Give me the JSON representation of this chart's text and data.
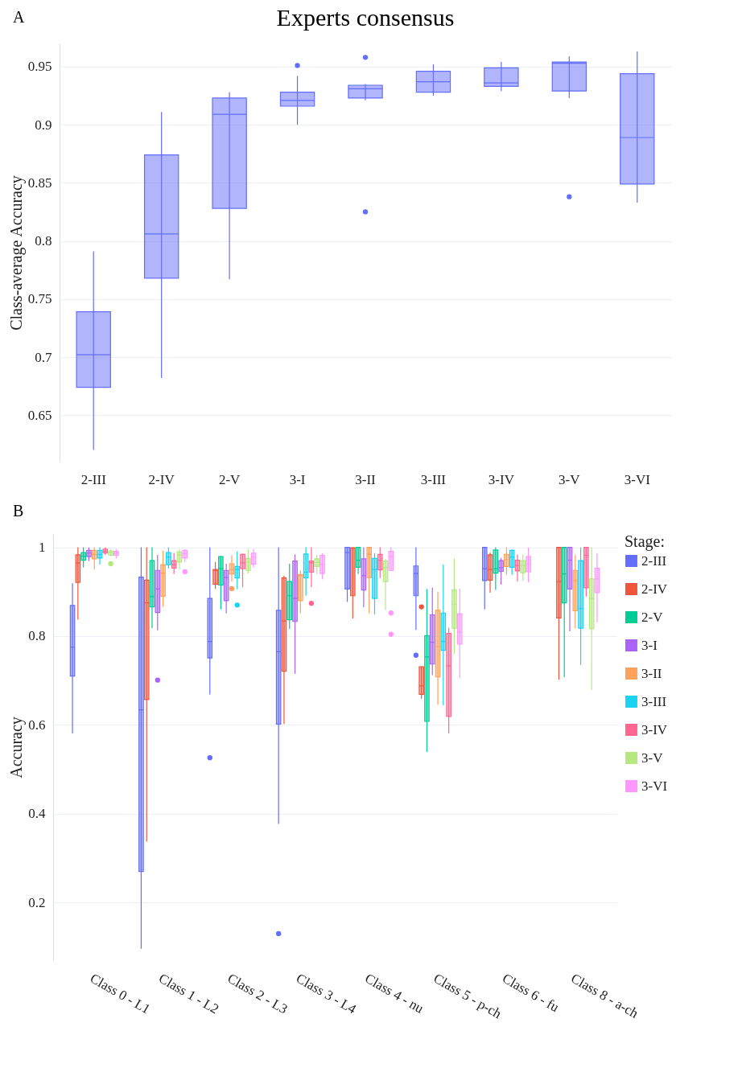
{
  "chart_data": [
    {
      "type": "box",
      "title": "Experts consensus",
      "ylabel": "Class-average Accuracy",
      "annotations": [
        "A"
      ],
      "grid": "y",
      "ylim": [
        0.61,
        0.97
      ],
      "yticks": [
        0.65,
        0.7,
        0.75,
        0.8,
        0.85,
        0.9,
        0.95
      ],
      "categories": [
        "2-III",
        "2-IV",
        "2-V",
        "3-I",
        "3-II",
        "3-III",
        "3-IV",
        "3-V",
        "3-VI"
      ],
      "series": [
        {
          "color": "#636efa",
          "boxes": [
            {
              "low": 0.62,
              "q1": 0.674,
              "median": 0.702,
              "q3": 0.739,
              "high": 0.791
            },
            {
              "low": 0.682,
              "q1": 0.768,
              "median": 0.806,
              "q3": 0.874,
              "high": 0.911
            },
            {
              "low": 0.767,
              "q1": 0.828,
              "median": 0.909,
              "q3": 0.923,
              "high": 0.928
            },
            {
              "low": 0.9,
              "q1": 0.916,
              "median": 0.921,
              "q3": 0.928,
              "high": 0.942,
              "outliers": [
                0.951
              ]
            },
            {
              "low": 0.921,
              "q1": 0.923,
              "median": 0.931,
              "q3": 0.934,
              "high": 0.935,
              "outliers": [
                0.958,
                0.825
              ]
            },
            {
              "low": 0.925,
              "q1": 0.928,
              "median": 0.937,
              "q3": 0.946,
              "high": 0.952
            },
            {
              "low": 0.929,
              "q1": 0.933,
              "median": 0.936,
              "q3": 0.949,
              "high": 0.954
            },
            {
              "low": 0.923,
              "q1": 0.929,
              "median": 0.953,
              "q3": 0.954,
              "high": 0.959,
              "outliers": [
                0.838
              ]
            },
            {
              "low": 0.833,
              "q1": 0.849,
              "median": 0.889,
              "q3": 0.944,
              "high": 0.963
            }
          ]
        }
      ]
    },
    {
      "type": "box",
      "ylabel": "Accuracy",
      "legend_title": "Stage:",
      "legend": "right",
      "annotations": [
        "B"
      ],
      "grid": "y",
      "ylim": [
        0.07,
        1.03
      ],
      "yticks": [
        0.2,
        0.4,
        0.6,
        0.8,
        1
      ],
      "categories": [
        "Class 0 - L1",
        "Class 1 - L2",
        "Class 2 - L3",
        "Class 3 - L4",
        "Class 4 - nu",
        "Class 5 - p-ch",
        "Class 6 - fu",
        "Class 8 - a-ch"
      ],
      "series": [
        {
          "name": "2-III",
          "color": "#636efa",
          "boxes": [
            {
              "low": 0.581,
              "q1": 0.71,
              "median": 0.775,
              "q3": 0.869,
              "high": 0.919
            },
            {
              "low": 0.096,
              "q1": 0.27,
              "median": 0.634,
              "q3": 0.933,
              "high": 1
            },
            {
              "low": 0.668,
              "q1": 0.751,
              "median": 0.788,
              "q3": 0.885,
              "high": 1,
              "outliers": [
                0.526
              ]
            },
            {
              "low": 0.377,
              "q1": 0.602,
              "median": 0.765,
              "q3": 0.858,
              "high": 1,
              "outliers": [
                0.13
              ]
            },
            {
              "low": 0.877,
              "q1": 0.906,
              "median": 0.988,
              "q3": 1,
              "high": 1
            },
            {
              "low": 0.814,
              "q1": 0.891,
              "median": 0.941,
              "q3": 0.958,
              "high": 1,
              "outliers": [
                0.757
              ]
            },
            {
              "low": 0.86,
              "q1": 0.925,
              "median": 0.952,
              "q3": 1,
              "high": 1
            },
            null
          ]
        },
        {
          "name": "2-IV",
          "color": "#ef553b",
          "boxes": [
            {
              "low": 0.837,
              "q1": 0.921,
              "median": 0.965,
              "q3": 0.983,
              "high": 1
            },
            {
              "low": 0.337,
              "q1": 0.657,
              "median": 0.875,
              "q3": 0.926,
              "high": 1
            },
            {
              "low": 0.906,
              "q1": 0.917,
              "median": 0.948,
              "q3": 0.95,
              "high": 0.967
            },
            {
              "low": 0.602,
              "q1": 0.721,
              "median": 0.834,
              "q3": 0.931,
              "high": 0.936
            },
            {
              "low": 0.84,
              "q1": 0.891,
              "median": 0.998,
              "q3": 0.999,
              "high": 1
            },
            {
              "low": 0.659,
              "q1": 0.669,
              "median": 0.688,
              "q3": 0.731,
              "high": 0.732,
              "outliers": [
                0.866
              ]
            },
            {
              "low": 0.898,
              "q1": 0.926,
              "median": 0.95,
              "q3": 0.983,
              "high": 0.988
            },
            {
              "low": 0.702,
              "q1": 0.841,
              "median": 0.923,
              "q3": 1,
              "high": 1
            }
          ]
        },
        {
          "name": "2-V",
          "color": "#00cc96",
          "boxes": [
            {
              "low": 0.955,
              "q1": 0.971,
              "median": 0.98,
              "q3": 0.988,
              "high": 1
            },
            {
              "low": 0.818,
              "q1": 0.866,
              "median": 0.889,
              "q3": 0.97,
              "high": 1
            },
            {
              "low": 0.86,
              "q1": 0.915,
              "median": 0.952,
              "q3": 0.979,
              "high": 0.98
            },
            {
              "low": 0.816,
              "q1": 0.837,
              "median": 0.891,
              "q3": 0.923,
              "high": 0.963
            },
            {
              "low": 0.94,
              "q1": 0.955,
              "median": 0.971,
              "q3": 1,
              "high": 1
            },
            {
              "low": 0.539,
              "q1": 0.608,
              "median": 0.753,
              "q3": 0.801,
              "high": 0.906
            },
            {
              "low": 0.904,
              "q1": 0.942,
              "median": 0.952,
              "q3": 0.994,
              "high": 1
            },
            {
              "low": 0.707,
              "q1": 0.875,
              "median": 0.94,
              "q3": 1,
              "high": 1
            }
          ]
        },
        {
          "name": "3-I",
          "color": "#ab63fa",
          "boxes": [
            {
              "low": 0.969,
              "q1": 0.979,
              "median": 0.987,
              "q3": 0.993,
              "high": 1
            },
            {
              "low": 0.813,
              "q1": 0.853,
              "median": 0.906,
              "q3": 0.948,
              "high": 0.983,
              "outliers": [
                0.701
              ]
            },
            {
              "low": 0.851,
              "q1": 0.88,
              "median": 0.932,
              "q3": 0.948,
              "high": 0.963
            },
            {
              "low": 0.715,
              "q1": 0.833,
              "median": 0.885,
              "q3": 0.969,
              "high": 0.984
            },
            {
              "low": 0.865,
              "q1": 0.904,
              "median": 0.936,
              "q3": 0.974,
              "high": 1
            },
            {
              "low": 0.712,
              "q1": 0.737,
              "median": 0.786,
              "q3": 0.848,
              "high": 0.909
            },
            {
              "low": 0.916,
              "q1": 0.946,
              "median": 0.954,
              "q3": 0.97,
              "high": 0.976
            },
            {
              "low": 0.811,
              "q1": 0.906,
              "median": 0.971,
              "q3": 1,
              "high": 1
            }
          ]
        },
        {
          "name": "3-II",
          "color": "#ffa15a",
          "boxes": [
            {
              "low": 0.95,
              "q1": 0.974,
              "median": 0.984,
              "q3": 0.993,
              "high": 1
            },
            {
              "low": 0.866,
              "q1": 0.89,
              "median": 0.942,
              "q3": 0.961,
              "high": 0.992
            },
            {
              "low": 0.923,
              "q1": 0.94,
              "median": 0.95,
              "q3": 0.963,
              "high": 0.982,
              "outliers": [
                0.907
              ]
            },
            {
              "low": 0.851,
              "q1": 0.88,
              "median": 0.936,
              "q3": 0.939,
              "high": 0.948
            },
            {
              "low": 0.851,
              "q1": 0.932,
              "median": 0.984,
              "q3": 1,
              "high": 1
            },
            {
              "low": 0.645,
              "q1": 0.708,
              "median": 0.776,
              "q3": 0.858,
              "high": 0.899
            },
            {
              "low": 0.938,
              "q1": 0.957,
              "median": 0.972,
              "q3": 0.984,
              "high": 1
            },
            {
              "low": 0.817,
              "q1": 0.857,
              "median": 0.925,
              "q3": 0.948,
              "high": 0.983
            }
          ]
        },
        {
          "name": "3-III",
          "color": "#19d3f3",
          "boxes": [
            {
              "low": 0.961,
              "q1": 0.976,
              "median": 0.984,
              "q3": 0.993,
              "high": 1
            },
            {
              "low": 0.952,
              "q1": 0.961,
              "median": 0.978,
              "q3": 0.988,
              "high": 1
            },
            {
              "low": 0.906,
              "q1": 0.931,
              "median": 0.95,
              "q3": 0.957,
              "high": 0.991,
              "outliers": [
                0.87
              ]
            },
            {
              "low": 0.891,
              "q1": 0.931,
              "median": 0.944,
              "q3": 0.985,
              "high": 1
            },
            {
              "low": 0.849,
              "q1": 0.885,
              "median": 0.95,
              "q3": 0.975,
              "high": 0.987
            },
            {
              "low": 0.644,
              "q1": 0.768,
              "median": 0.788,
              "q3": 0.852,
              "high": 0.961
            },
            {
              "low": 0.938,
              "q1": 0.955,
              "median": 0.978,
              "q3": 0.993,
              "high": 0.995
            },
            {
              "low": 0.735,
              "q1": 0.818,
              "median": 0.862,
              "q3": 0.97,
              "high": 1
            }
          ]
        },
        {
          "name": "3-IV",
          "color": "#ff6692",
          "boxes": [
            {
              "low": 0.983,
              "q1": 0.987,
              "median": 0.991,
              "q3": 0.996,
              "high": 1
            },
            {
              "low": 0.94,
              "q1": 0.953,
              "median": 0.961,
              "q3": 0.97,
              "high": 0.987
            },
            {
              "low": 0.91,
              "q1": 0.952,
              "median": 0.965,
              "q3": 0.984,
              "high": 0.986
            },
            {
              "low": 0.91,
              "q1": 0.944,
              "median": 0.965,
              "q3": 0.969,
              "high": 1,
              "outliers": [
                0.874
              ]
            },
            {
              "low": 0.931,
              "q1": 0.949,
              "median": 0.971,
              "q3": 0.984,
              "high": 1
            },
            {
              "low": 0.581,
              "q1": 0.619,
              "median": 0.733,
              "q3": 0.806,
              "high": 0.819
            },
            {
              "low": 0.923,
              "q1": 0.947,
              "median": 0.959,
              "q3": 0.971,
              "high": 0.984
            },
            {
              "low": 0.889,
              "q1": 0.909,
              "median": 0.982,
              "q3": 1,
              "high": 1
            }
          ]
        },
        {
          "name": "3-V",
          "color": "#b6e880",
          "boxes": [
            {
              "low": 0.98,
              "q1": 0.982,
              "median": 0.988,
              "q3": 0.992,
              "high": 0.996,
              "outliers": [
                0.963
              ]
            },
            {
              "low": 0.951,
              "q1": 0.967,
              "median": 0.983,
              "q3": 0.99,
              "high": 0.996
            },
            {
              "low": 0.941,
              "q1": 0.948,
              "median": 0.967,
              "q3": 0.975,
              "high": 0.996
            },
            {
              "low": 0.94,
              "q1": 0.957,
              "median": 0.966,
              "q3": 0.974,
              "high": 0.983
            },
            {
              "low": 0.859,
              "q1": 0.923,
              "median": 0.954,
              "q3": 0.969,
              "high": 0.974
            },
            {
              "low": 0.76,
              "q1": 0.818,
              "median": 0.872,
              "q3": 0.904,
              "high": 0.975
            },
            {
              "low": 0.925,
              "q1": 0.943,
              "median": 0.959,
              "q3": 0.97,
              "high": 0.984
            },
            {
              "low": 0.678,
              "q1": 0.817,
              "median": 0.885,
              "q3": 0.929,
              "high": 1
            }
          ]
        },
        {
          "name": "3-VI",
          "color": "#ff97ff",
          "boxes": [
            {
              "low": 0.975,
              "q1": 0.982,
              "median": 0.987,
              "q3": 0.991,
              "high": 0.996
            },
            {
              "low": 0.967,
              "q1": 0.976,
              "median": 0.986,
              "q3": 0.993,
              "high": 0.996,
              "outliers": [
                0.945
              ]
            },
            {
              "low": 0.955,
              "q1": 0.962,
              "median": 0.978,
              "q3": 0.987,
              "high": 0.996
            },
            {
              "low": 0.928,
              "q1": 0.941,
              "median": 0.962,
              "q3": 0.982,
              "high": 0.987
            },
            {
              "low": 0.948,
              "q1": 0.948,
              "median": 0.979,
              "q3": 0.991,
              "high": 1,
              "outliers": [
                0.852,
                0.804
              ]
            },
            {
              "low": 0.706,
              "q1": 0.782,
              "median": 0.809,
              "q3": 0.85,
              "high": 0.907
            },
            {
              "low": 0.921,
              "q1": 0.945,
              "median": 0.963,
              "q3": 0.979,
              "high": 0.999
            },
            {
              "low": 0.831,
              "q1": 0.898,
              "median": 0.929,
              "q3": 0.953,
              "high": 0.987
            }
          ]
        }
      ]
    }
  ]
}
